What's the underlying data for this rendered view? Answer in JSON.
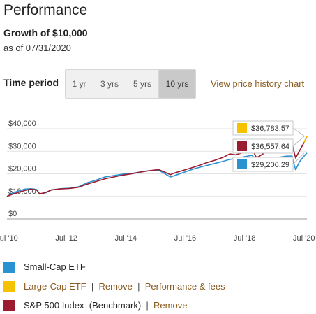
{
  "header": {
    "title": "Performance",
    "subtitle": "Growth of $10,000",
    "as_of": "as of 07/31/2020"
  },
  "time_period": {
    "label": "Time period",
    "options": [
      "1 yr",
      "3 yrs",
      "5 yrs",
      "10 yrs"
    ],
    "selected": "10 yrs",
    "view_chart_link": "View price history chart"
  },
  "colors": {
    "small_cap": "#2b92d1",
    "large_cap": "#f5c200",
    "sp500": "#9b1b30",
    "active_button_bg": "#c9c9c9",
    "link": "#8a5a1e"
  },
  "chart_data": {
    "type": "line",
    "x_ticks": [
      "Jul '10",
      "Jul '12",
      "Jul '14",
      "Jul '16",
      "Jul '18",
      "Jul '20"
    ],
    "y_ticks": [
      "$40,000",
      "$30,000",
      "$20,000",
      "$10,000",
      "$0"
    ],
    "ylim": [
      0,
      40000
    ],
    "xlim": [
      2010.5,
      2020.6
    ],
    "end_labels": [
      {
        "series": "Large-Cap ETF",
        "text": "$36,783.57",
        "color": "#f5c200"
      },
      {
        "series": "S&P 500 Index",
        "text": "$36,557.64",
        "color": "#9b1b30"
      },
      {
        "series": "Small-Cap ETF",
        "text": "$29,206.29",
        "color": "#2b92d1"
      }
    ],
    "series": [
      {
        "name": "Small-Cap ETF",
        "color": "#2b92d1",
        "x": [
          2010.5,
          2010.7,
          2010.9,
          2011.1,
          2011.3,
          2011.5,
          2011.6,
          2011.8,
          2012.0,
          2012.3,
          2012.6,
          2012.9,
          2013.2,
          2013.5,
          2013.8,
          2014.1,
          2014.4,
          2014.7,
          2015.0,
          2015.3,
          2015.6,
          2015.8,
          2016.0,
          2016.1,
          2016.4,
          2016.7,
          2016.9,
          2017.2,
          2017.5,
          2017.8,
          2018.0,
          2018.2,
          2018.5,
          2018.75,
          2018.9,
          2019.0,
          2019.3,
          2019.6,
          2019.9,
          2020.1,
          2020.18,
          2020.22,
          2020.35,
          2020.5,
          2020.6
        ],
        "y": [
          10000,
          11600,
          12400,
          13200,
          13400,
          13000,
          11000,
          11600,
          12800,
          13400,
          13600,
          14200,
          16000,
          17200,
          18600,
          19200,
          19800,
          20200,
          20800,
          21400,
          21600,
          20200,
          18600,
          19000,
          20400,
          21800,
          22600,
          23600,
          24600,
          25600,
          26400,
          26800,
          27600,
          28200,
          26000,
          26200,
          26800,
          27200,
          27800,
          27900,
          23600,
          21800,
          25400,
          27800,
          29206
        ]
      },
      {
        "name": "S&P 500 Index",
        "color": "#9b1b30",
        "x": [
          2010.5,
          2010.7,
          2010.9,
          2011.1,
          2011.3,
          2011.5,
          2011.6,
          2011.8,
          2012.0,
          2012.3,
          2012.6,
          2012.9,
          2013.2,
          2013.5,
          2013.8,
          2014.1,
          2014.4,
          2014.7,
          2015.0,
          2015.3,
          2015.6,
          2015.8,
          2016.0,
          2016.1,
          2016.4,
          2016.7,
          2016.9,
          2017.2,
          2017.5,
          2017.8,
          2018.0,
          2018.2,
          2018.5,
          2018.75,
          2018.9,
          2019.0,
          2019.3,
          2019.6,
          2019.9,
          2020.1,
          2020.18,
          2020.22,
          2020.35,
          2020.5,
          2020.6
        ],
        "y": [
          10000,
          11000,
          11800,
          12600,
          13200,
          12800,
          11100,
          11700,
          12900,
          13300,
          13500,
          14000,
          15400,
          16600,
          17800,
          18600,
          19400,
          20000,
          20800,
          21400,
          21900,
          20800,
          19600,
          20200,
          21400,
          22600,
          23400,
          24800,
          26000,
          27400,
          28800,
          28400,
          29600,
          31000,
          27200,
          27800,
          30400,
          31600,
          32600,
          33600,
          29000,
          27000,
          30200,
          33800,
          36558
        ]
      },
      {
        "name": "Large-Cap ETF",
        "color": "#f5c200",
        "x": [
          2020.5,
          2020.6
        ],
        "y": [
          33900,
          36784
        ]
      }
    ]
  },
  "legend": [
    {
      "label": "Small-Cap ETF",
      "color": "#2b92d1"
    },
    {
      "label": "Large-Cap ETF",
      "color": "#f5c200",
      "sep1": "|",
      "remove": "Remove",
      "sep2": "|",
      "fees": "Performance & fees"
    },
    {
      "label": "S&P 500 Index",
      "color": "#9b1b30",
      "benchmark": "(Benchmark)",
      "sep1": "|",
      "remove": "Remove"
    }
  ]
}
